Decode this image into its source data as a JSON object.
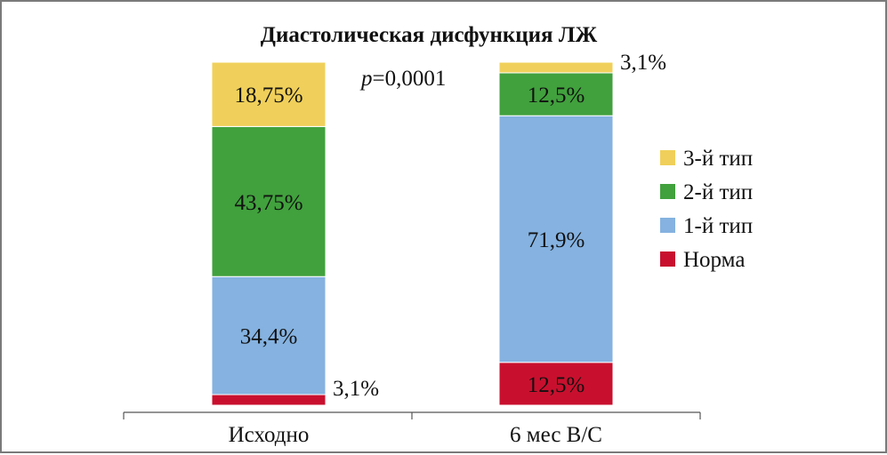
{
  "chart_data": {
    "type": "bar",
    "stacked": true,
    "normalized": true,
    "title": "Диастолическая дисфункция ЛЖ",
    "annotation": {
      "italic": "p",
      "rest": "=0,0001"
    },
    "categories": [
      "Исходно",
      "6 мес В/С"
    ],
    "series": [
      {
        "name": "Норма",
        "color": "#c8102e",
        "values": [
          3.1,
          12.5
        ],
        "labels": [
          "3,1%",
          "12,5%"
        ],
        "label_color": "#111111"
      },
      {
        "name": "1-й тип",
        "color": "#85b2e0",
        "values": [
          34.4,
          71.9
        ],
        "labels": [
          "34,4%",
          "71,9%"
        ],
        "label_color": "#111111"
      },
      {
        "name": "2-й тип",
        "color": "#41a13d",
        "values": [
          43.75,
          12.5
        ],
        "labels": [
          "43,75%",
          "12,5%"
        ],
        "label_color": "#111111"
      },
      {
        "name": "3-й тип",
        "color": "#f0d05a",
        "values": [
          18.75,
          3.1
        ],
        "labels": [
          "18,75%",
          "3,1%"
        ],
        "label_color": "#111111"
      }
    ],
    "ylim": [
      0,
      100
    ],
    "legend_position": "right",
    "grid": false
  }
}
